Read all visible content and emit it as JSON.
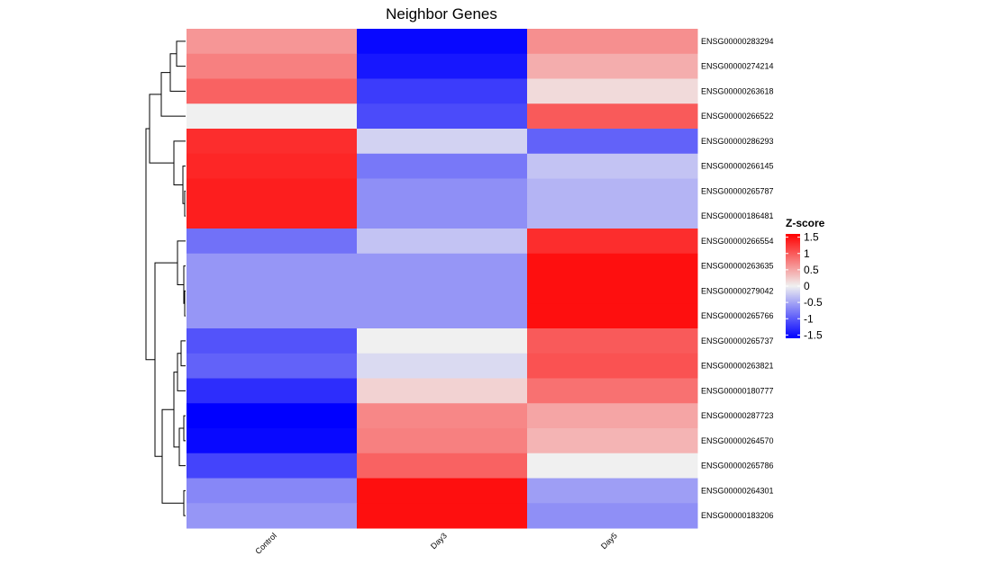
{
  "chart_data": {
    "type": "heatmap",
    "title": "Neighbor Genes",
    "columns": [
      "Control",
      "Day3",
      "Day5"
    ],
    "rows": [
      "ENSG00000283294",
      "ENSG00000274214",
      "ENSG00000263618",
      "ENSG00000266522",
      "ENSG00000286293",
      "ENSG00000266145",
      "ENSG00000265787",
      "ENSG00000186481",
      "ENSG00000266554",
      "ENSG00000263635",
      "ENSG00000279042",
      "ENSG00000265766",
      "ENSG00000265737",
      "ENSG00000263821",
      "ENSG00000180777",
      "ENSG00000287723",
      "ENSG00000264570",
      "ENSG00000265786",
      "ENSG00000264301",
      "ENSG00000183206"
    ],
    "values": [
      [
        0.6,
        -1.55,
        0.65
      ],
      [
        0.75,
        -1.45,
        0.45
      ],
      [
        0.95,
        -1.2,
        0.15
      ],
      [
        0.0,
        -1.1,
        1.0
      ],
      [
        1.3,
        -0.2,
        -0.95
      ],
      [
        1.35,
        -0.8,
        -0.3
      ],
      [
        1.4,
        -0.65,
        -0.4
      ],
      [
        1.4,
        -0.65,
        -0.4
      ],
      [
        -0.85,
        -0.3,
        1.3
      ],
      [
        -0.6,
        -0.6,
        1.5
      ],
      [
        -0.6,
        -0.6,
        1.5
      ],
      [
        -0.6,
        -0.6,
        1.5
      ],
      [
        -1.05,
        0.0,
        1.0
      ],
      [
        -0.95,
        -0.15,
        1.05
      ],
      [
        -1.3,
        0.2,
        0.85
      ],
      [
        -1.6,
        0.7,
        0.5
      ],
      [
        -1.55,
        0.75,
        0.4
      ],
      [
        -1.15,
        0.95,
        0.0
      ],
      [
        -0.7,
        1.5,
        -0.55
      ],
      [
        -0.6,
        1.5,
        -0.65
      ]
    ],
    "legend": {
      "title": "Z-score",
      "ticks": [
        1.5,
        1,
        0.5,
        0,
        -0.5,
        -1,
        -1.5
      ],
      "tick_labels": [
        "1.5",
        "1",
        "0.5",
        "0",
        "-0.5",
        "-1",
        "-1.5"
      ],
      "range": [
        -1.6,
        1.6
      ],
      "colors": {
        "low": "#0000ff",
        "mid": "#f0f0f0",
        "high": "#ff0000"
      },
      "placement": "right"
    },
    "row_dendrogram": "left",
    "grid": false
  }
}
